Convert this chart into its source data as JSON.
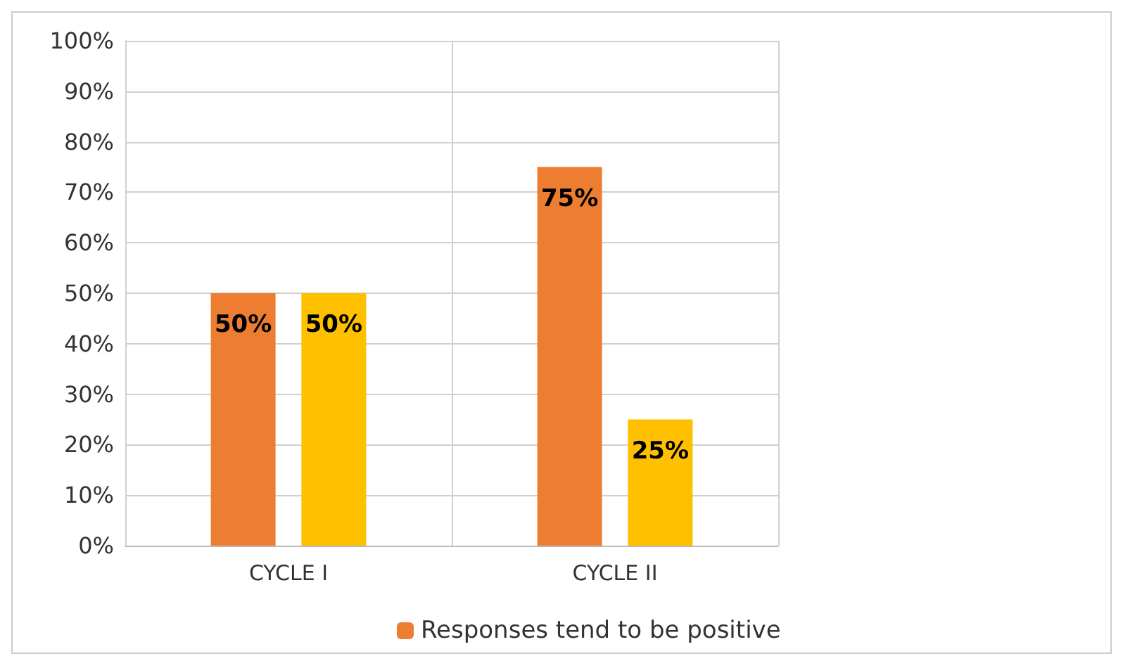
{
  "chart_data": {
    "type": "bar",
    "categories": [
      "CYCLE I",
      "CYCLE II"
    ],
    "series": [
      {
        "name": "Responses tend to be positive",
        "color": "#ed7d31",
        "values": [
          50,
          75
        ],
        "value_labels": [
          "50%",
          "75%"
        ]
      },
      {
        "color": "#ffc000",
        "values": [
          50,
          25
        ],
        "value_labels": [
          "50%",
          "25%"
        ]
      }
    ],
    "ylim": [
      0,
      100
    ],
    "yticks": [
      {
        "value": 0,
        "label": "0%"
      },
      {
        "value": 10,
        "label": "10%"
      },
      {
        "value": 20,
        "label": "20%"
      },
      {
        "value": 30,
        "label": "30%"
      },
      {
        "value": 40,
        "label": "40%"
      },
      {
        "value": 50,
        "label": "50%"
      },
      {
        "value": 60,
        "label": "60%"
      },
      {
        "value": 70,
        "label": "70%"
      },
      {
        "value": 80,
        "label": "80%"
      },
      {
        "value": 90,
        "label": "90%"
      },
      {
        "value": 100,
        "label": "100%"
      }
    ],
    "grid": true,
    "legend": "bottom"
  }
}
